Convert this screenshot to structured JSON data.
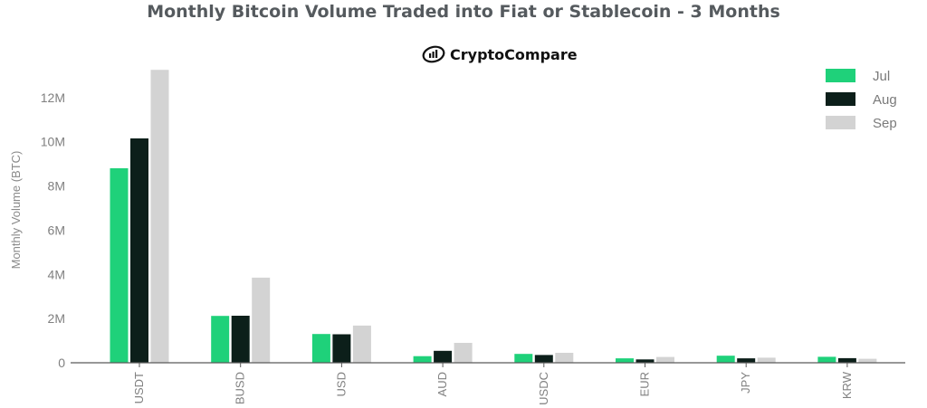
{
  "chart_data": {
    "type": "bar",
    "title": "Monthly Bitcoin Volume Traded into Fiat or Stablecoin - 3 Months",
    "brand": "CryptoCompare",
    "ylabel": "Monthly Volume (BTC)",
    "xlabel": "",
    "ylim": [
      0,
      13300000
    ],
    "yticks": [
      0,
      2000000,
      4000000,
      6000000,
      8000000,
      10000000,
      12000000
    ],
    "ytick_labels": [
      "0",
      "2M",
      "4M",
      "6M",
      "8M",
      "10M",
      "12M"
    ],
    "categories": [
      "USDT",
      "BUSD",
      "USD",
      "AUD",
      "USDC",
      "EUR",
      "JPY",
      "KRW"
    ],
    "series": [
      {
        "name": "Jul",
        "color": "#1fd17a",
        "values": [
          8800000,
          2120000,
          1300000,
          300000,
          400000,
          200000,
          320000,
          270000
        ]
      },
      {
        "name": "Aug",
        "color": "#0c1f1a",
        "values": [
          10150000,
          2130000,
          1290000,
          540000,
          350000,
          150000,
          200000,
          210000
        ]
      },
      {
        "name": "Sep",
        "color": "#d3d3d3",
        "values": [
          13250000,
          3850000,
          1680000,
          900000,
          450000,
          260000,
          230000,
          180000
        ]
      }
    ],
    "grid": false,
    "legend": "top-right"
  }
}
